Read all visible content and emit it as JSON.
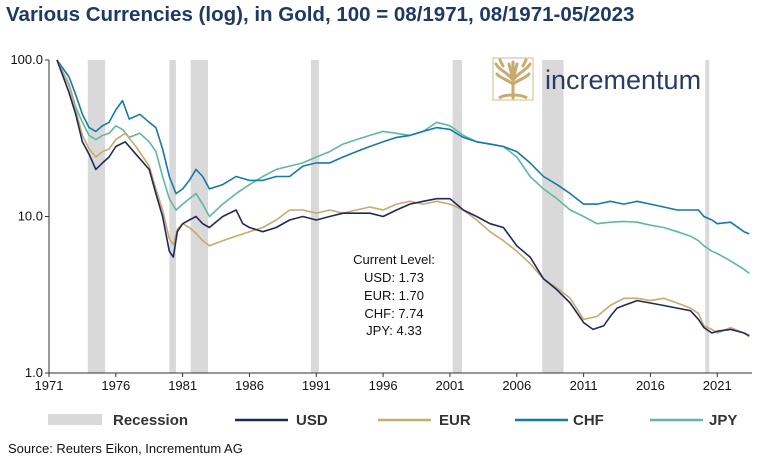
{
  "title": "Various Currencies (log), in Gold, 100 = 08/1971, 08/1971-05/2023",
  "source": "Source: Reuters Eikon, Incrementum AG",
  "brand": "incrementum",
  "annotation": {
    "heading": "Current Level:",
    "lines": [
      "USD: 1.73",
      "EUR: 1.70",
      "CHF: 7.74",
      "JPY: 4.33"
    ]
  },
  "chart_data": {
    "type": "line",
    "y_scale": "log",
    "ylim": [
      1.0,
      100.0
    ],
    "y_ticks": [
      1.0,
      10.0,
      100.0
    ],
    "y_tick_labels": [
      "1.0",
      "10.0",
      "100.0"
    ],
    "xlim": [
      1971.0,
      2023.6
    ],
    "x_ticks": [
      1971,
      1976,
      1981,
      1986,
      1991,
      1996,
      2001,
      2006,
      2011,
      2016,
      2021
    ],
    "x_tick_labels": [
      "1971",
      "1976",
      "1981",
      "1986",
      "1991",
      "1996",
      "2001",
      "2006",
      "2011",
      "2016",
      "2021"
    ],
    "recessions": [
      [
        1973.9,
        1975.2
      ],
      [
        1980.0,
        1980.5
      ],
      [
        1981.6,
        1982.9
      ],
      [
        1990.6,
        1991.2
      ],
      [
        2001.2,
        2001.9
      ],
      [
        2007.9,
        2009.5
      ],
      [
        2020.1,
        2020.4
      ]
    ],
    "legend": [
      {
        "name": "Recession",
        "color": "#d9d9d9",
        "kind": "bar"
      },
      {
        "name": "USD",
        "color": "#1f2a5c",
        "kind": "line"
      },
      {
        "name": "EUR",
        "color": "#c9aa6e",
        "kind": "line"
      },
      {
        "name": "CHF",
        "color": "#157aa8",
        "kind": "line"
      },
      {
        "name": "JPY",
        "color": "#5fb8a3",
        "kind": "line"
      }
    ],
    "series": [
      {
        "name": "USD",
        "color": "#1f2a5c",
        "x": [
          1971.6,
          1972.5,
          1973.0,
          1973.5,
          1974.0,
          1974.5,
          1975.0,
          1975.5,
          1976.0,
          1976.7,
          1977.5,
          1978.5,
          1979.0,
          1979.5,
          1980.0,
          1980.3,
          1980.6,
          1981.0,
          1981.5,
          1982.0,
          1982.5,
          1983.0,
          1984.0,
          1985.0,
          1985.5,
          1986.0,
          1987.0,
          1988.0,
          1989.0,
          1990.0,
          1991.0,
          1992.0,
          1993.0,
          1994.0,
          1995.0,
          1996.0,
          1997.0,
          1998.0,
          1999.0,
          2000.0,
          2001.0,
          2002.0,
          2003.0,
          2004.0,
          2005.0,
          2006.0,
          2007.0,
          2008.0,
          2009.0,
          2010.0,
          2011.0,
          2011.7,
          2012.5,
          2013.0,
          2013.5,
          2014.0,
          2015.0,
          2016.0,
          2017.0,
          2018.0,
          2019.0,
          2019.6,
          2020.0,
          2020.6,
          2021.0,
          2022.0,
          2023.0,
          2023.4
        ],
        "values": [
          100,
          62,
          45,
          30,
          25,
          20,
          22,
          24,
          28,
          30,
          25,
          20,
          14,
          10,
          6,
          5.5,
          8,
          9,
          9.5,
          10,
          9,
          8.5,
          10,
          11,
          9,
          8.5,
          8,
          8.5,
          9.5,
          10,
          9.5,
          10,
          10.5,
          10.5,
          10.5,
          10,
          11,
          12,
          12.5,
          13,
          13,
          11,
          10,
          9,
          8.5,
          6.5,
          5.5,
          4,
          3.4,
          2.8,
          2.1,
          1.9,
          2.0,
          2.3,
          2.6,
          2.7,
          2.9,
          2.8,
          2.7,
          2.6,
          2.5,
          2.2,
          1.95,
          1.8,
          1.85,
          1.9,
          1.8,
          1.73
        ]
      },
      {
        "name": "EUR",
        "color": "#c9aa6e",
        "x": [
          1971.6,
          1972.5,
          1973.0,
          1973.5,
          1974.0,
          1974.5,
          1975.0,
          1975.5,
          1976.0,
          1976.7,
          1977.5,
          1978.5,
          1979.0,
          1979.5,
          1980.0,
          1980.3,
          1980.6,
          1981.0,
          1981.5,
          1982.0,
          1982.5,
          1983.0,
          1984.0,
          1985.0,
          1986.0,
          1987.0,
          1988.0,
          1989.0,
          1990.0,
          1991.0,
          1992.0,
          1993.0,
          1994.0,
          1995.0,
          1996.0,
          1997.0,
          1998.0,
          1999.0,
          2000.0,
          2001.0,
          2002.0,
          2003.0,
          2004.0,
          2005.0,
          2006.0,
          2007.0,
          2008.0,
          2009.0,
          2010.0,
          2011.0,
          2012.0,
          2013.0,
          2014.0,
          2015.0,
          2016.0,
          2017.0,
          2018.0,
          2019.0,
          2019.6,
          2020.0,
          2020.6,
          2021.0,
          2022.0,
          2023.0,
          2023.4
        ],
        "values": [
          100,
          68,
          48,
          33,
          27,
          24,
          26,
          27,
          31,
          34,
          28,
          21,
          15,
          11,
          7.2,
          6.6,
          8.3,
          9.0,
          8.5,
          7.8,
          7.0,
          6.5,
          7.0,
          7.5,
          8.0,
          8.5,
          9.5,
          11,
          11,
          10.5,
          11,
          10.5,
          11,
          11.5,
          11,
          12,
          12.5,
          12,
          12.5,
          12,
          11,
          9.5,
          8,
          7,
          6,
          5,
          4,
          3.5,
          3.0,
          2.2,
          2.3,
          2.7,
          3.0,
          3.0,
          2.9,
          3.0,
          2.8,
          2.6,
          2.4,
          2.0,
          1.9,
          1.8,
          1.95,
          1.8,
          1.7
        ]
      },
      {
        "name": "CHF",
        "color": "#157aa8",
        "x": [
          1971.6,
          1972.5,
          1973.0,
          1973.5,
          1974.0,
          1974.5,
          1975.0,
          1975.5,
          1976.0,
          1976.5,
          1977.0,
          1977.8,
          1978.5,
          1979.0,
          1979.5,
          1980.0,
          1980.5,
          1981.0,
          1981.5,
          1982.0,
          1982.5,
          1983.0,
          1984.0,
          1985.0,
          1986.0,
          1987.0,
          1988.0,
          1989.0,
          1990.0,
          1991.0,
          1992.0,
          1993.0,
          1994.0,
          1995.0,
          1996.0,
          1997.0,
          1998.0,
          1999.0,
          2000.0,
          2001.0,
          2002.0,
          2003.0,
          2004.0,
          2005.0,
          2006.0,
          2007.0,
          2008.0,
          2009.0,
          2010.0,
          2011.0,
          2012.0,
          2013.0,
          2014.0,
          2015.0,
          2016.0,
          2017.0,
          2018.0,
          2019.0,
          2019.6,
          2020.0,
          2020.6,
          2021.0,
          2022.0,
          2023.0,
          2023.4
        ],
        "values": [
          100,
          78,
          60,
          45,
          37,
          35,
          38,
          40,
          48,
          55,
          42,
          45,
          40,
          37,
          27,
          18,
          14,
          15,
          17,
          20,
          18,
          15,
          16,
          18,
          17,
          17,
          18,
          18,
          21,
          22,
          22,
          24,
          26,
          28,
          30,
          32,
          33,
          35,
          37,
          36,
          32,
          30,
          29,
          28,
          26,
          22,
          18,
          16,
          14,
          12,
          12,
          12.5,
          12,
          12.5,
          12,
          11.5,
          11,
          11,
          11,
          10,
          9.5,
          9,
          9.2,
          8,
          7.74
        ]
      },
      {
        "name": "JPY",
        "color": "#5fb8a3",
        "x": [
          1971.6,
          1972.5,
          1973.0,
          1973.5,
          1974.0,
          1974.5,
          1975.0,
          1975.5,
          1976.0,
          1976.5,
          1977.0,
          1977.8,
          1978.5,
          1979.0,
          1979.5,
          1980.0,
          1980.5,
          1981.0,
          1981.5,
          1982.0,
          1982.5,
          1983.0,
          1984.0,
          1985.0,
          1986.0,
          1987.0,
          1988.0,
          1989.0,
          1990.0,
          1991.0,
          1992.0,
          1993.0,
          1994.0,
          1995.0,
          1996.0,
          1997.0,
          1998.0,
          1999.0,
          2000.0,
          2001.0,
          2002.0,
          2003.0,
          2004.0,
          2005.0,
          2006.0,
          2007.0,
          2008.0,
          2009.0,
          2010.0,
          2011.0,
          2012.0,
          2013.0,
          2014.0,
          2015.0,
          2016.0,
          2017.0,
          2018.0,
          2019.0,
          2019.6,
          2020.0,
          2020.6,
          2021.0,
          2022.0,
          2023.0,
          2023.4
        ],
        "values": [
          100,
          70,
          50,
          40,
          33,
          31,
          33,
          34,
          38,
          36,
          32,
          34,
          30,
          26,
          18,
          13,
          11,
          12,
          13,
          14,
          12,
          10,
          12,
          14,
          16,
          18,
          20,
          21,
          22,
          24,
          26,
          29,
          31,
          33,
          35,
          34,
          33,
          35,
          40,
          38,
          33,
          30,
          29,
          28,
          24,
          18,
          15,
          13,
          11,
          10,
          9,
          9.2,
          9.3,
          9.2,
          8.8,
          8.5,
          8.0,
          7.5,
          7.0,
          6.5,
          6.0,
          5.8,
          5.2,
          4.6,
          4.33
        ]
      }
    ]
  }
}
